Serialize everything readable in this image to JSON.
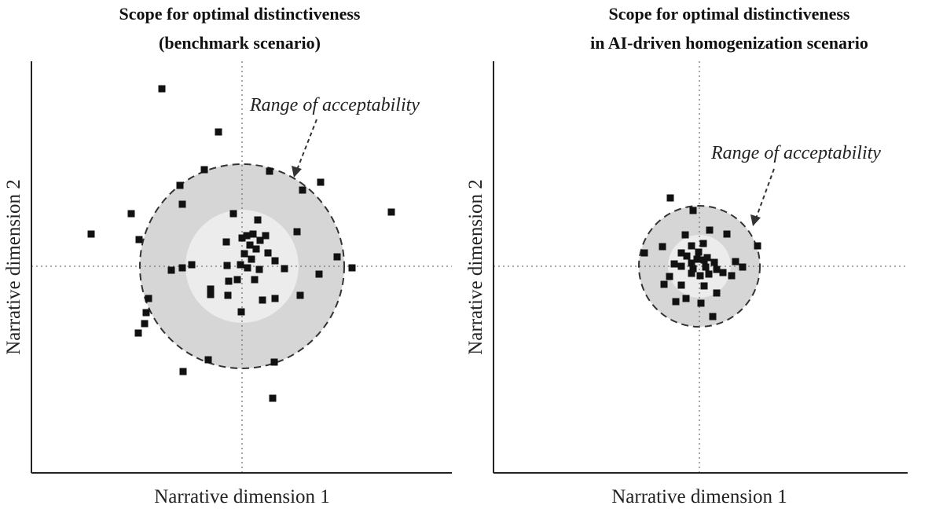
{
  "panels": [
    {
      "title_line1": "Scope for optimal distinctiveness",
      "title_line2": "(benchmark scenario)",
      "xlabel": "Narrative dimension 1",
      "ylabel": "Narrative dimension 2",
      "annotation": "Range of acceptability",
      "outer_region_color": "#d6d6d6",
      "inner_region_color": "#ececec",
      "point_color": "#111111"
    },
    {
      "title_line1": "Scope for optimal distinctiveness",
      "title_line2": "in AI-driven homogenization scenario",
      "xlabel": "Narrative dimension 1",
      "ylabel": "Narrative dimension 2",
      "annotation": "Range of acceptability",
      "outer_region_color": "#d6d6d6",
      "inner_region_color": "#ececec",
      "point_color": "#111111"
    }
  ]
}
